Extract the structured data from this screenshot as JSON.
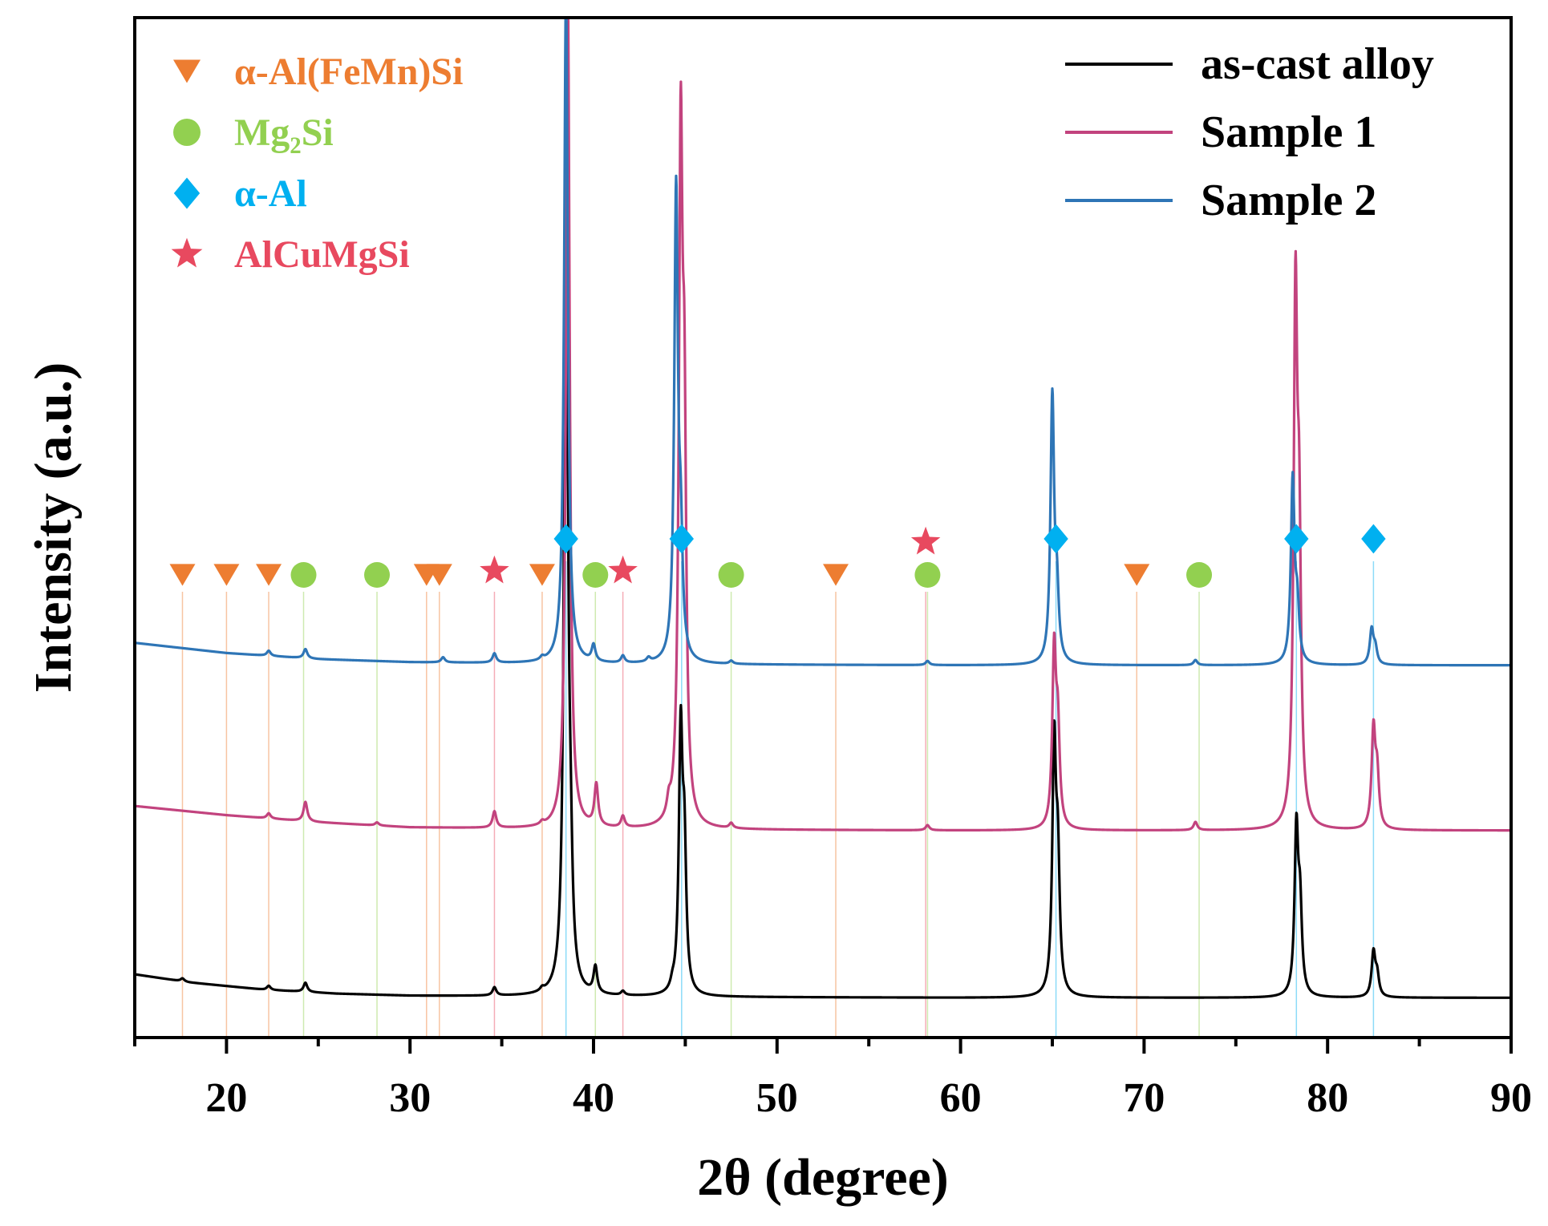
{
  "chart_data": {
    "type": "line",
    "title": "",
    "xlabel": "2θ (degree)",
    "ylabel": "Intensity (a.u.)",
    "xlim": [
      15,
      90
    ],
    "ylim": [
      0,
      100
    ],
    "xticks": [
      20,
      30,
      40,
      50,
      60,
      70,
      80,
      90
    ],
    "yticks_shown": false,
    "grid": false,
    "legend_position": "top-right",
    "series": [
      {
        "name": "as-cast alloy",
        "color": "#000000",
        "baseline": [
          [
            15,
            6.2
          ],
          [
            18,
            5.4
          ],
          [
            22,
            4.7
          ],
          [
            26,
            4.3
          ],
          [
            30,
            4.1
          ],
          [
            40,
            4.0
          ],
          [
            60,
            3.9
          ],
          [
            90,
            3.9
          ]
        ],
        "peaks": [
          [
            17.6,
            0.3
          ],
          [
            22.3,
            0.4
          ],
          [
            24.3,
            0.9
          ],
          [
            34.6,
            0.8
          ],
          [
            37.2,
            0.3
          ],
          [
            38.5,
            85
          ],
          [
            38.75,
            8
          ],
          [
            40.1,
            2.6
          ],
          [
            41.6,
            0.4
          ],
          [
            44.3,
            0.6
          ],
          [
            44.75,
            25
          ],
          [
            44.95,
            13
          ],
          [
            65.1,
            24
          ],
          [
            65.3,
            12
          ],
          [
            78.3,
            16
          ],
          [
            78.5,
            8
          ],
          [
            82.5,
            4.3
          ],
          [
            82.7,
            2
          ]
        ]
      },
      {
        "name": "Sample 1",
        "color": "#c2437e",
        "baseline": [
          [
            15,
            22.7
          ],
          [
            20,
            21.8
          ],
          [
            25,
            21.1
          ],
          [
            30,
            20.6
          ],
          [
            40,
            20.4
          ],
          [
            60,
            20.3
          ],
          [
            90,
            20.3
          ]
        ],
        "peaks": [
          [
            22.3,
            0.5
          ],
          [
            24.3,
            1.9
          ],
          [
            28.2,
            0.3
          ],
          [
            34.6,
            1.6
          ],
          [
            37.2,
            0.3
          ],
          [
            38.6,
            82
          ],
          [
            40.15,
            4.1
          ],
          [
            41.6,
            1.1
          ],
          [
            44.1,
            1.4
          ],
          [
            44.75,
            64
          ],
          [
            44.95,
            34
          ],
          [
            47.5,
            0.5
          ],
          [
            58.2,
            0.5
          ],
          [
            65.1,
            17
          ],
          [
            65.3,
            9
          ],
          [
            72.8,
            0.8
          ],
          [
            78.25,
            50
          ],
          [
            78.45,
            25
          ],
          [
            82.5,
            9.5
          ],
          [
            82.7,
            5
          ]
        ]
      },
      {
        "name": "Sample 2",
        "color": "#2e75b6",
        "baseline": [
          [
            15,
            38.7
          ],
          [
            20,
            37.7
          ],
          [
            25,
            37.1
          ],
          [
            30,
            36.8
          ],
          [
            40,
            36.6
          ],
          [
            60,
            36.5
          ],
          [
            90,
            36.5
          ]
        ],
        "peaks": [
          [
            22.3,
            0.5
          ],
          [
            24.3,
            0.9
          ],
          [
            31.8,
            0.5
          ],
          [
            34.6,
            0.9
          ],
          [
            37.2,
            0.3
          ],
          [
            38.5,
            66
          ],
          [
            40.0,
            1.6
          ],
          [
            41.6,
            0.7
          ],
          [
            43.0,
            0.4
          ],
          [
            44.5,
            46
          ],
          [
            44.75,
            10
          ],
          [
            47.5,
            0.3
          ],
          [
            58.2,
            0.4
          ],
          [
            65.0,
            26
          ],
          [
            65.25,
            6
          ],
          [
            72.8,
            0.5
          ],
          [
            78.1,
            18
          ],
          [
            78.35,
            5
          ],
          [
            82.4,
            3.4
          ],
          [
            82.6,
            1.5
          ]
        ]
      }
    ],
    "phases": [
      {
        "name": "α-Al(FeMn)Si",
        "symbol": "triangle-down",
        "color": "#ed7d31",
        "positions": [
          17.6,
          20.0,
          22.3,
          30.9,
          31.6,
          37.2,
          53.2,
          69.6
        ]
      },
      {
        "name": "Mg₂Si",
        "symbol": "circle",
        "color": "#92d050",
        "positions": [
          24.2,
          28.2,
          40.1,
          47.5,
          58.2,
          73.0
        ]
      },
      {
        "name": "α-Al",
        "symbol": "diamond",
        "color": "#00b0f0",
        "positions": [
          38.5,
          44.8,
          65.2,
          78.3,
          82.5
        ]
      },
      {
        "name": "AlCuMgSi",
        "symbol": "star",
        "color": "#e8495f",
        "positions": [
          34.6,
          41.6,
          58.1
        ]
      }
    ]
  }
}
